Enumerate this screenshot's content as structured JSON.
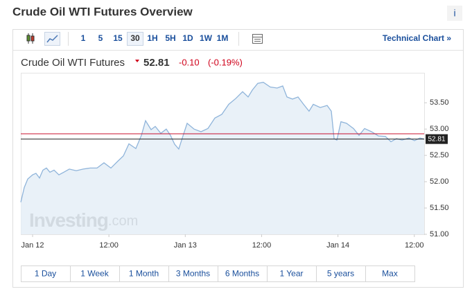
{
  "header": {
    "title": "Crude Oil WTI Futures Overview",
    "info": "i"
  },
  "toolbar": {
    "intervals": [
      "1",
      "5",
      "15",
      "30",
      "1H",
      "5H",
      "1D",
      "1W",
      "1M"
    ],
    "selected_interval": 3,
    "link": "Technical Chart »"
  },
  "quote": {
    "name": "Crude Oil WTI Futures",
    "price": "52.81",
    "change": "-0.10",
    "change_pct": "(-0.19%)"
  },
  "chart_data": {
    "type": "area",
    "x": [
      -1.85,
      -1.31,
      -0.76,
      0,
      0.54,
      1.09,
      1.63,
      2.18,
      2.72,
      3.38,
      4.14,
      4.9,
      5.77,
      6.86,
      7.95,
      9.04,
      10.13,
      11.22,
      12.31,
      13.4,
      14.27,
      15.14,
      16.23,
      17.1,
      17.76,
      18.63,
      19.28,
      20.15,
      21.02,
      21.68,
      22.33,
      22.98,
      23.64,
      24.29,
      25.38,
      26.47,
      27.56,
      28.65,
      29.74,
      30.83,
      31.92,
      33.01,
      33.88,
      34.53,
      35.4,
      36.27,
      37.36,
      38.45,
      39.32,
      39.98,
      40.85,
      41.72,
      42.59,
      43.46,
      44.12,
      45.21,
      46.3,
      46.95,
      47.39,
      47.82,
      48.47,
      49.35,
      50.44,
      51.31,
      52.18,
      53.27,
      54.36,
      55.45,
      56.32,
      57.19,
      58.06,
      59.15,
      60.02,
      60.89,
      61.55
    ],
    "series": [
      {
        "color": "#8fb4da",
        "fill": "#e4edf6",
        "values": [
          51.61,
          51.89,
          52.05,
          52.13,
          52.16,
          52.07,
          52.22,
          52.26,
          52.18,
          52.22,
          52.13,
          52.18,
          52.24,
          52.21,
          52.24,
          52.26,
          52.26,
          52.36,
          52.26,
          52.39,
          52.49,
          52.72,
          52.63,
          52.88,
          53.16,
          52.99,
          53.05,
          52.92,
          53.0,
          52.88,
          52.71,
          52.62,
          52.87,
          53.11,
          53.0,
          52.95,
          53.01,
          53.21,
          53.28,
          53.47,
          53.58,
          53.71,
          53.61,
          53.74,
          53.87,
          53.89,
          53.8,
          53.78,
          53.82,
          53.61,
          53.57,
          53.61,
          53.47,
          53.34,
          53.47,
          53.41,
          53.45,
          53.34,
          52.82,
          52.79,
          53.14,
          53.11,
          53.01,
          52.88,
          53.01,
          52.95,
          52.87,
          52.86,
          52.76,
          52.82,
          52.79,
          52.83,
          52.78,
          52.83,
          52.81
        ]
      }
    ],
    "xlim": [
      -1.85,
      61.55
    ],
    "xticks": [
      {
        "value": 0,
        "label": "Jan 12"
      },
      {
        "value": 12,
        "label": "12:00"
      },
      {
        "value": 24,
        "label": "Jan 13"
      },
      {
        "value": 36,
        "label": "12:00"
      },
      {
        "value": 48,
        "label": "Jan 14"
      },
      {
        "value": 60,
        "label": "12:00"
      }
    ],
    "ylim": [
      51.0,
      54.07
    ],
    "yticks": [
      {
        "value": 51.0,
        "label": "51.00"
      },
      {
        "value": 51.5,
        "label": "51.50"
      },
      {
        "value": 52.0,
        "label": "52.00"
      },
      {
        "value": 52.5,
        "label": "52.50"
      },
      {
        "value": 53.0,
        "label": "53.00"
      },
      {
        "value": 53.5,
        "label": "53.50"
      }
    ],
    "reference_lines": [
      {
        "value": 52.91,
        "color": "#c8102e"
      },
      {
        "value": 52.81,
        "color": "#222222"
      }
    ],
    "watermark": {
      "brand": "Investing",
      "suffix": ".com"
    }
  },
  "ranges": [
    "1 Day",
    "1 Week",
    "1 Month",
    "3 Months",
    "6 Months",
    "1 Year",
    "5 years",
    "Max"
  ]
}
